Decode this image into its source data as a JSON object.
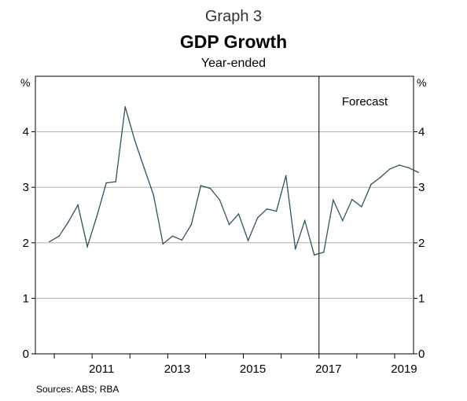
{
  "header": {
    "supertitle": "Graph 3",
    "title": "GDP Growth",
    "subtitle": "Year-ended"
  },
  "footer": {
    "source": "Sources:   ABS; RBA"
  },
  "chart_data": {
    "type": "line",
    "title": "GDP Growth",
    "subtitle": "Year-ended",
    "ylabel_left": "%",
    "ylabel_right": "%",
    "ylim": [
      0,
      5
    ],
    "yticks": [
      0,
      1,
      2,
      3,
      4
    ],
    "xlim": [
      "2009-Q4",
      "2019-Q4"
    ],
    "xtick_labels": [
      "2011",
      "2013",
      "2015",
      "2017",
      "2019"
    ],
    "forecast_start": "2017",
    "annotation": "Forecast",
    "grid": "horizontal",
    "line_color": "#2e5460",
    "series": [
      {
        "x": [
          "2010-Q1",
          "2010-Q2",
          "2010-Q3",
          "2010-Q4",
          "2011-Q1",
          "2011-Q2",
          "2011-Q3",
          "2011-Q4",
          "2012-Q1",
          "2012-Q2",
          "2012-Q3",
          "2012-Q4",
          "2013-Q1",
          "2013-Q2",
          "2013-Q3",
          "2013-Q4",
          "2014-Q1",
          "2014-Q2",
          "2014-Q3",
          "2014-Q4",
          "2015-Q1",
          "2015-Q2",
          "2015-Q3",
          "2015-Q4",
          "2016-Q1",
          "2016-Q2",
          "2016-Q3",
          "2016-Q4",
          "2017-Q1",
          "2017-Q2",
          "2017-Q3",
          "2017-Q4",
          "2018-Q1",
          "2018-Q2",
          "2018-Q3",
          "2018-Q4",
          "2019-Q1",
          "2019-Q2",
          "2019-Q3",
          "2019-Q4"
        ],
        "values": [
          2.02,
          2.12,
          2.38,
          2.68,
          1.93,
          2.48,
          3.08,
          3.1,
          4.45,
          3.85,
          3.35,
          2.86,
          1.98,
          2.12,
          2.05,
          2.33,
          3.03,
          2.98,
          2.77,
          2.33,
          2.52,
          2.04,
          2.45,
          2.61,
          2.57,
          3.21,
          1.89,
          2.4,
          1.78,
          1.83,
          2.77,
          2.4,
          2.78,
          2.65,
          3.05,
          3.18,
          3.33,
          3.4,
          3.35,
          3.27
        ]
      }
    ]
  }
}
